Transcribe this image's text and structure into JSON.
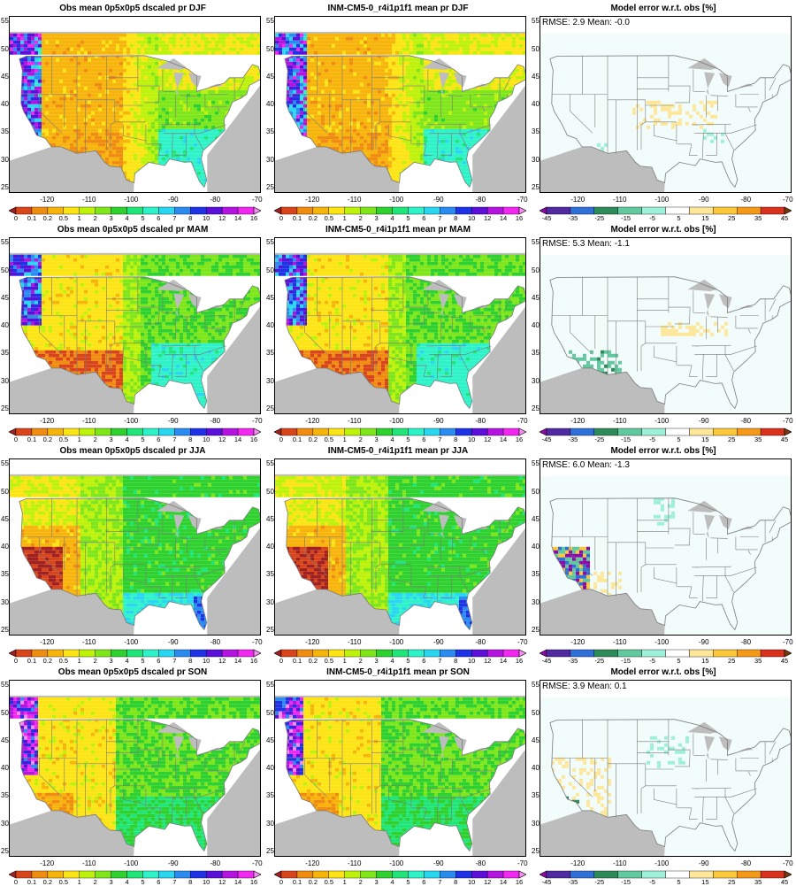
{
  "figure": {
    "rows": [
      {
        "season": "DJF",
        "panels": [
          {
            "kind": "obs",
            "title": "Obs mean 0p5x0p5 dscaled pr DJF"
          },
          {
            "kind": "model",
            "title": "INM-CM5-0_r4i1p1f1 mean pr DJF"
          },
          {
            "kind": "error",
            "title": "Model error w.r.t. obs [%]",
            "stats": "RMSE: 2.9  Mean: -0.0"
          }
        ]
      },
      {
        "season": "MAM",
        "panels": [
          {
            "kind": "obs",
            "title": "Obs mean 0p5x0p5 dscaled pr MAM"
          },
          {
            "kind": "model",
            "title": "INM-CM5-0_r4i1p1f1 mean pr MAM"
          },
          {
            "kind": "error",
            "title": "Model error w.r.t. obs [%]",
            "stats": "RMSE: 5.3  Mean: -1.1"
          }
        ]
      },
      {
        "season": "JJA",
        "panels": [
          {
            "kind": "obs",
            "title": "Obs mean 0p5x0p5 dscaled pr JJA"
          },
          {
            "kind": "model",
            "title": "INM-CM5-0_r4i1p1f1 mean pr JJA"
          },
          {
            "kind": "error",
            "title": "Model error w.r.t. obs [%]",
            "stats": "RMSE: 6.0  Mean: -1.3"
          }
        ]
      },
      {
        "season": "SON",
        "panels": [
          {
            "kind": "obs",
            "title": "Obs mean 0p5x0p5 dscaled pr SON"
          },
          {
            "kind": "model",
            "title": "INM-CM5-0_r4i1p1f1 mean pr SON"
          },
          {
            "kind": "error",
            "title": "Model error w.r.t. obs [%]",
            "stats": "RMSE: 3.9  Mean: 0.1"
          }
        ]
      }
    ],
    "lat_ticks": [
      "25",
      "30",
      "35",
      "40",
      "45",
      "50",
      "55"
    ],
    "lon_ticks": [
      "-120",
      "-110",
      "-100",
      "-90",
      "-80",
      "-70"
    ],
    "pr_colorbar": {
      "labels": [
        "0",
        "0.1",
        "0.2",
        "0.5",
        "1",
        "2",
        "3",
        "4",
        "5",
        "6",
        "7",
        "8",
        "10",
        "12",
        "14",
        "16"
      ],
      "colors": [
        "#a0211f",
        "#d9451b",
        "#f08c10",
        "#f7b40a",
        "#fde414",
        "#bff20a",
        "#7fe61a",
        "#2fd12f",
        "#20e67a",
        "#2ef2c8",
        "#2ad7f0",
        "#2a8cf0",
        "#1f32e6",
        "#5a10d8",
        "#b414e0",
        "#f028f0",
        "#f58cf0"
      ]
    },
    "err_colorbar": {
      "labels": [
        "-45",
        "-35",
        "-25",
        "-15",
        "-5",
        "5",
        "15",
        "25",
        "35",
        "45"
      ],
      "colors": [
        "#8c0aa8",
        "#4f2aa0",
        "#2f6fd8",
        "#2f8a5a",
        "#62c8a0",
        "#9ef0d8",
        "#ffffff",
        "#fde79a",
        "#fbc83a",
        "#f59a18",
        "#d8321e",
        "#7a3a10"
      ]
    },
    "colors": {
      "land_mask": "#bdbdbd",
      "ocean_bg": "#ffffff",
      "borders": "#7a7a7a"
    }
  }
}
